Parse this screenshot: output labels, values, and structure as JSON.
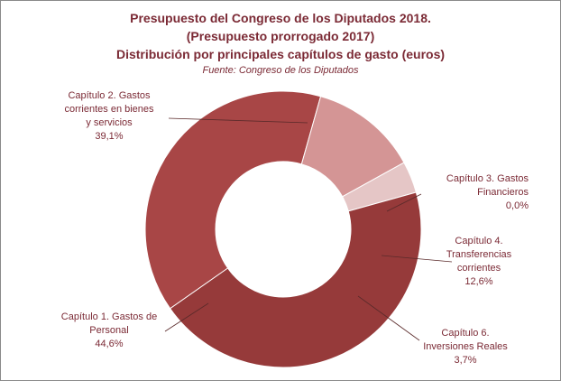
{
  "title": {
    "line1": "Presupuesto del Congreso de los Diputados 2018.",
    "line2": "(Presupuesto prorrogado 2017)",
    "line3": "Distribución por principales capítulos de gasto (euros)"
  },
  "source": "Fuente:  Congreso de los Diputados",
  "chart_data": {
    "type": "pie",
    "subtype": "donut",
    "legend": "none (data labels)",
    "slices": [
      {
        "label": "Capítulo 2. Gastos corrientes en bienes y servicios",
        "value": 39.1,
        "value_label": "39,1%",
        "label_lines": [
          "Capítulo 2. Gastos",
          "corrientes en bienes",
          "y servicios"
        ],
        "color": "#a84646"
      },
      {
        "label": "Capítulo 3. Gastos Financieros",
        "value": 0.0,
        "value_label": "0,0%",
        "label_lines": [
          "Capítulo 3. Gastos",
          "Financieros"
        ],
        "color": "#b85a5a"
      },
      {
        "label": "Capítulo 4. Transferencias corrientes",
        "value": 12.6,
        "value_label": "12,6%",
        "label_lines": [
          "Capítulo 4.",
          "Transferencias",
          "corrientes"
        ],
        "color": "#d49595"
      },
      {
        "label": "Capítulo 6. Inversiones Reales",
        "value": 3.7,
        "value_label": "3,7%",
        "label_lines": [
          "Capítulo 6.",
          "Inversiones Reales"
        ],
        "color": "#e5c6c6"
      },
      {
        "label": "Capítulo 1. Gastos de Personal",
        "value": 44.6,
        "value_label": "44,6%",
        "label_lines": [
          "Capítulo 1. Gastos de",
          "Personal"
        ],
        "color": "#963a3a"
      }
    ]
  }
}
